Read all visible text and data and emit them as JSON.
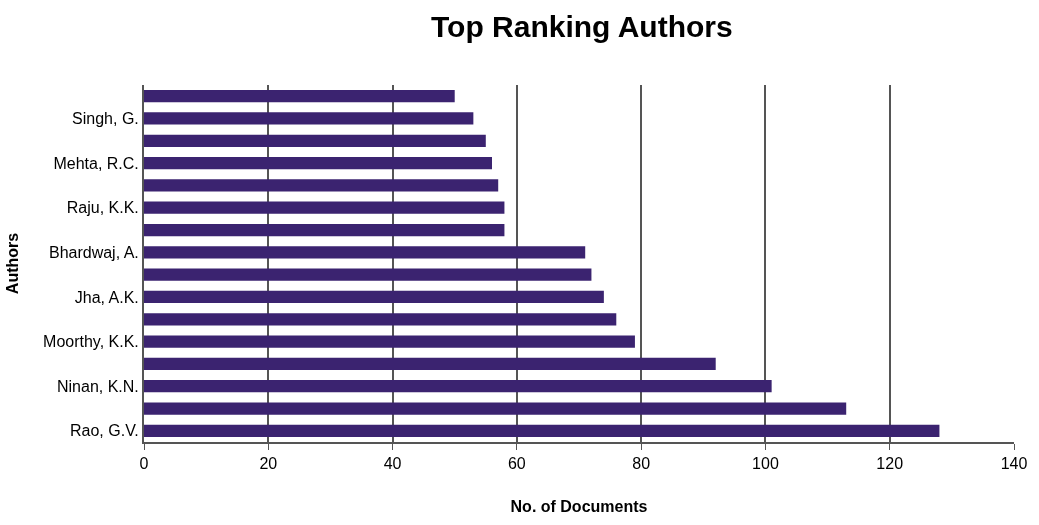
{
  "chart_data": {
    "type": "bar",
    "orientation": "horizontal",
    "title": "Top Ranking Authors",
    "xlabel": "No. of Documents",
    "ylabel": "Authors",
    "categories": [
      null,
      "Singh, G.",
      null,
      "Mehta, R.C.",
      null,
      "Raju, K.K.",
      null,
      "Bhardwaj, A.",
      null,
      "Jha, A.K.",
      null,
      "Moorthy, K.K.",
      null,
      "Ninan, K.N.",
      null,
      "Rao, G.V."
    ],
    "values": [
      50,
      53,
      55,
      56,
      57,
      58,
      58,
      71,
      72,
      74,
      76,
      79,
      92,
      101,
      113,
      128
    ],
    "color": "#3b2370",
    "xlim": [
      0,
      140
    ],
    "xticks": [
      0,
      20,
      40,
      60,
      80,
      100,
      120,
      140
    ],
    "grid": "x"
  }
}
